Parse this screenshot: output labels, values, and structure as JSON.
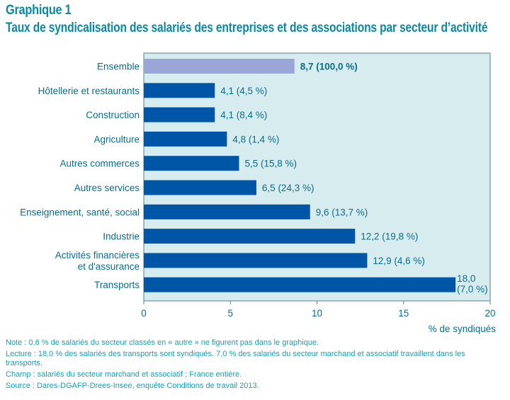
{
  "header": {
    "figure_label": "Graphique 1",
    "title": "Taux de syndicalisation des salariés des entreprises et des associations par secteur d’activité"
  },
  "colors": {
    "title": "#0a8aa0",
    "label_text": "#0b6d8a",
    "note_text": "#16a0b4",
    "plot_bg": "#d6ecee",
    "bar": "#0056a6",
    "bar_highlight": "#9aa6d8",
    "axis": "#5a7f88"
  },
  "chart_data": {
    "type": "bar",
    "orientation": "horizontal",
    "title": "Taux de syndicalisation des salariés des entreprises et des associations par secteur d’activité",
    "xlabel": "% de syndiqués",
    "ylabel": "",
    "xlim": [
      0,
      20
    ],
    "xticks": [
      0,
      5,
      10,
      15,
      20
    ],
    "grid": false,
    "categories": [
      [
        "Ensemble"
      ],
      [
        "Hôtellerie et restaurants"
      ],
      [
        "Construction"
      ],
      [
        "Agriculture"
      ],
      [
        "Autres commerces"
      ],
      [
        "Autres services"
      ],
      [
        "Enseignement, santé, social"
      ],
      [
        "Industrie"
      ],
      [
        "Activités financières",
        "et d'assurance"
      ],
      [
        "Transports"
      ]
    ],
    "values": [
      8.7,
      4.1,
      4.1,
      4.8,
      5.5,
      6.5,
      9.6,
      12.2,
      12.9,
      18.0
    ],
    "shares": [
      100.0,
      4.5,
      8.4,
      1.4,
      15.8,
      24.3,
      13.7,
      19.8,
      4.6,
      7.0
    ],
    "data_labels": [
      "8,7 (100,0 %)",
      "4,1 (4,5 %)",
      "4,1 (8,4 %)",
      "4,8 (1,4 %)",
      "5,5 (15,8 %)",
      "6,5 (24,3 %)",
      "9,6 (13,7 %)",
      "12,2 (19,8 %)",
      "12,9 (4,6 %)",
      [
        "18,0",
        "(7,0 %)"
      ]
    ],
    "highlight_index": 0
  },
  "notes": {
    "note": "Note : 0,6 % de salariés du secteur classés en « autre » ne figurent pas dans le graphique.",
    "lecture": "Lecture : 18,0 % des salariés des transports sont syndiqués. 7,0 % des salariés du secteur marchand et associatif travaillent dans les transports.",
    "champ": "Champ : salariés du secteur marchand et associatif ; France entière.",
    "source": "Source : Dares-DGAFP-Drees-Insee, enquête Conditions de travail 2013."
  }
}
